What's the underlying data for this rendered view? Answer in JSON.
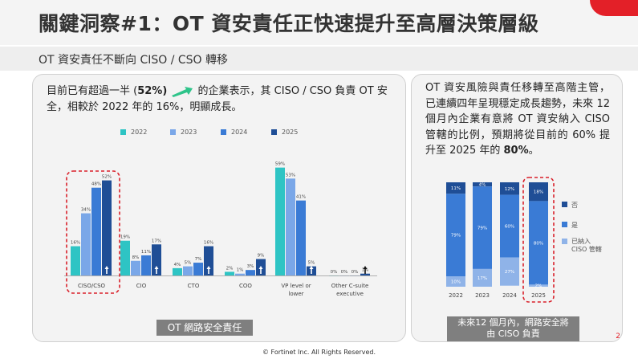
{
  "slide": {
    "title": "關鍵洞察#1：OT 資安責任正快速提升至高層決策層級",
    "subtitle": "OT 資安責任不斷向 CISO / CSO 轉移",
    "page_number": "2",
    "footer": "© Fortinet Inc. All Rights Reserved."
  },
  "left": {
    "text_before": "目前已有超過一半 (",
    "text_bold": "52%)",
    "text_after": " 的企業表示，其 CISO / CSO 負責 OT 安全，相較於 2022 年的 16%，明顯成長。",
    "caption": "OT 網路安全責任"
  },
  "right": {
    "text_main": "OT 資安風險與責任移轉至高階主管，已連續四年呈現穩定成長趨勢，未來 12 個月內企業有意將 OT 資安納入 CISO 管轄的比例，預期將從目前的 60% 提升至 2025 年的 ",
    "text_bold": "80%",
    "text_end": "。",
    "caption_line1": "未來12 個月內，網路安全將",
    "caption_line2": "由 CISO 負責"
  },
  "colors": {
    "y2022": "#2ec4c4",
    "y2023": "#7aa7e8",
    "y2024": "#3a7bd5",
    "y2025": "#1f4e96",
    "highlight": "#d9202a",
    "no": "#1f4e96",
    "yes": "#3a7bd5",
    "already": "#8fb3e8"
  },
  "chart_data": [
    {
      "type": "bar",
      "categories": [
        "CISO/CSO",
        "CIO",
        "CTO",
        "COO",
        "VP level or lower",
        "Other C-suite executive"
      ],
      "series": [
        {
          "name": "2022",
          "values": [
            16,
            19,
            4,
            2,
            59,
            0
          ]
        },
        {
          "name": "2023",
          "values": [
            34,
            8,
            5,
            1,
            53,
            0
          ]
        },
        {
          "name": "2024",
          "values": [
            48,
            11,
            7,
            3,
            41,
            0
          ]
        },
        {
          "name": "2025",
          "values": [
            52,
            17,
            16,
            9,
            5,
            1
          ]
        }
      ],
      "data_labels": [
        [
          "16%",
          "19%",
          "4%",
          "2%",
          "59%",
          "0%"
        ],
        [
          "34%",
          "8%",
          "5%",
          "1%",
          "53%",
          "0%"
        ],
        [
          "48%",
          "11%",
          "7%",
          "3%",
          "41%",
          "0%"
        ],
        [
          "52%",
          "17%",
          "16%",
          "9%",
          "5%",
          "1%"
        ]
      ],
      "ylim": [
        0,
        65
      ],
      "legend": "top"
    },
    {
      "type": "bar",
      "stacked": true,
      "categories": [
        "2022",
        "2023",
        "2024",
        "2025"
      ],
      "series": [
        {
          "name": "否",
          "values": [
            11,
            4,
            12,
            18
          ]
        },
        {
          "name": "是",
          "values": [
            79,
            79,
            60,
            80
          ]
        },
        {
          "name": "已納入 CISO 管轄",
          "values": [
            10,
            17,
            27,
            2
          ]
        }
      ],
      "data_labels": [
        [
          "11%",
          "4%",
          "12%",
          "18%"
        ],
        [
          "79%",
          "79%",
          "60%",
          "80%"
        ],
        [
          "10%",
          "17%",
          "27%",
          "2%"
        ]
      ],
      "ylim": [
        0,
        100
      ],
      "legend": "right"
    }
  ]
}
